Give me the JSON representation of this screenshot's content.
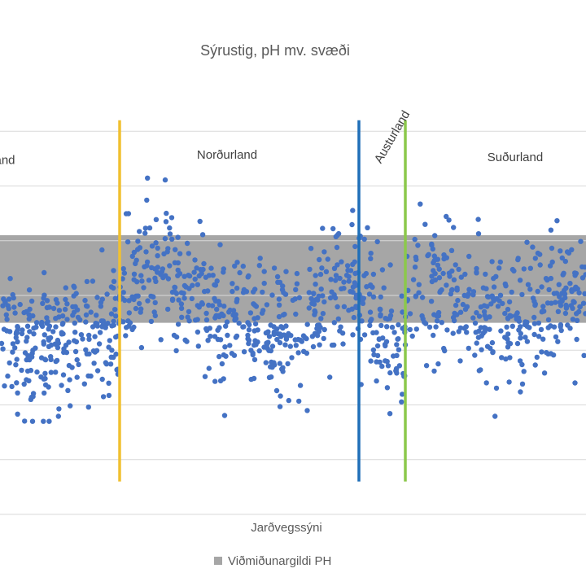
{
  "chart_data": {
    "type": "scatter",
    "title": "Sýrustig, pH mv. svæði",
    "xlabel": "Jarðvegssýni",
    "ylabel": "",
    "x_range": [
      0,
      1200
    ],
    "ylim": [
      3,
      11
    ],
    "y_gridlines": [
      4,
      5,
      6,
      7,
      8,
      9,
      10
    ],
    "reference_band": {
      "name": "Viðmiðunargildi PH",
      "from": 6.5,
      "to": 8.1,
      "color": "#a6a6a6"
    },
    "dividers": [
      {
        "x": 245,
        "color": "#f0c030"
      },
      {
        "x": 735,
        "color": "#1f6fb8"
      },
      {
        "x": 830,
        "color": "#8cc84b"
      }
    ],
    "regions": [
      {
        "label": "and",
        "x": 10,
        "y": 9.4,
        "rotation": 0
      },
      {
        "label": "Norðurland",
        "x": 465,
        "y": 9.5,
        "rotation": 0
      },
      {
        "label": "Austurland",
        "x": 780,
        "y": 9.4,
        "rotation": -60
      },
      {
        "label": "Suðurland",
        "x": 1055,
        "y": 9.45,
        "rotation": 0
      }
    ],
    "series": [
      {
        "name": "pH",
        "color": "#4472c4",
        "seed": 7,
        "count": 1150
      }
    ],
    "legend": {
      "position": "bottom",
      "entries": [
        "Viðmiðunargildi PH"
      ]
    }
  }
}
